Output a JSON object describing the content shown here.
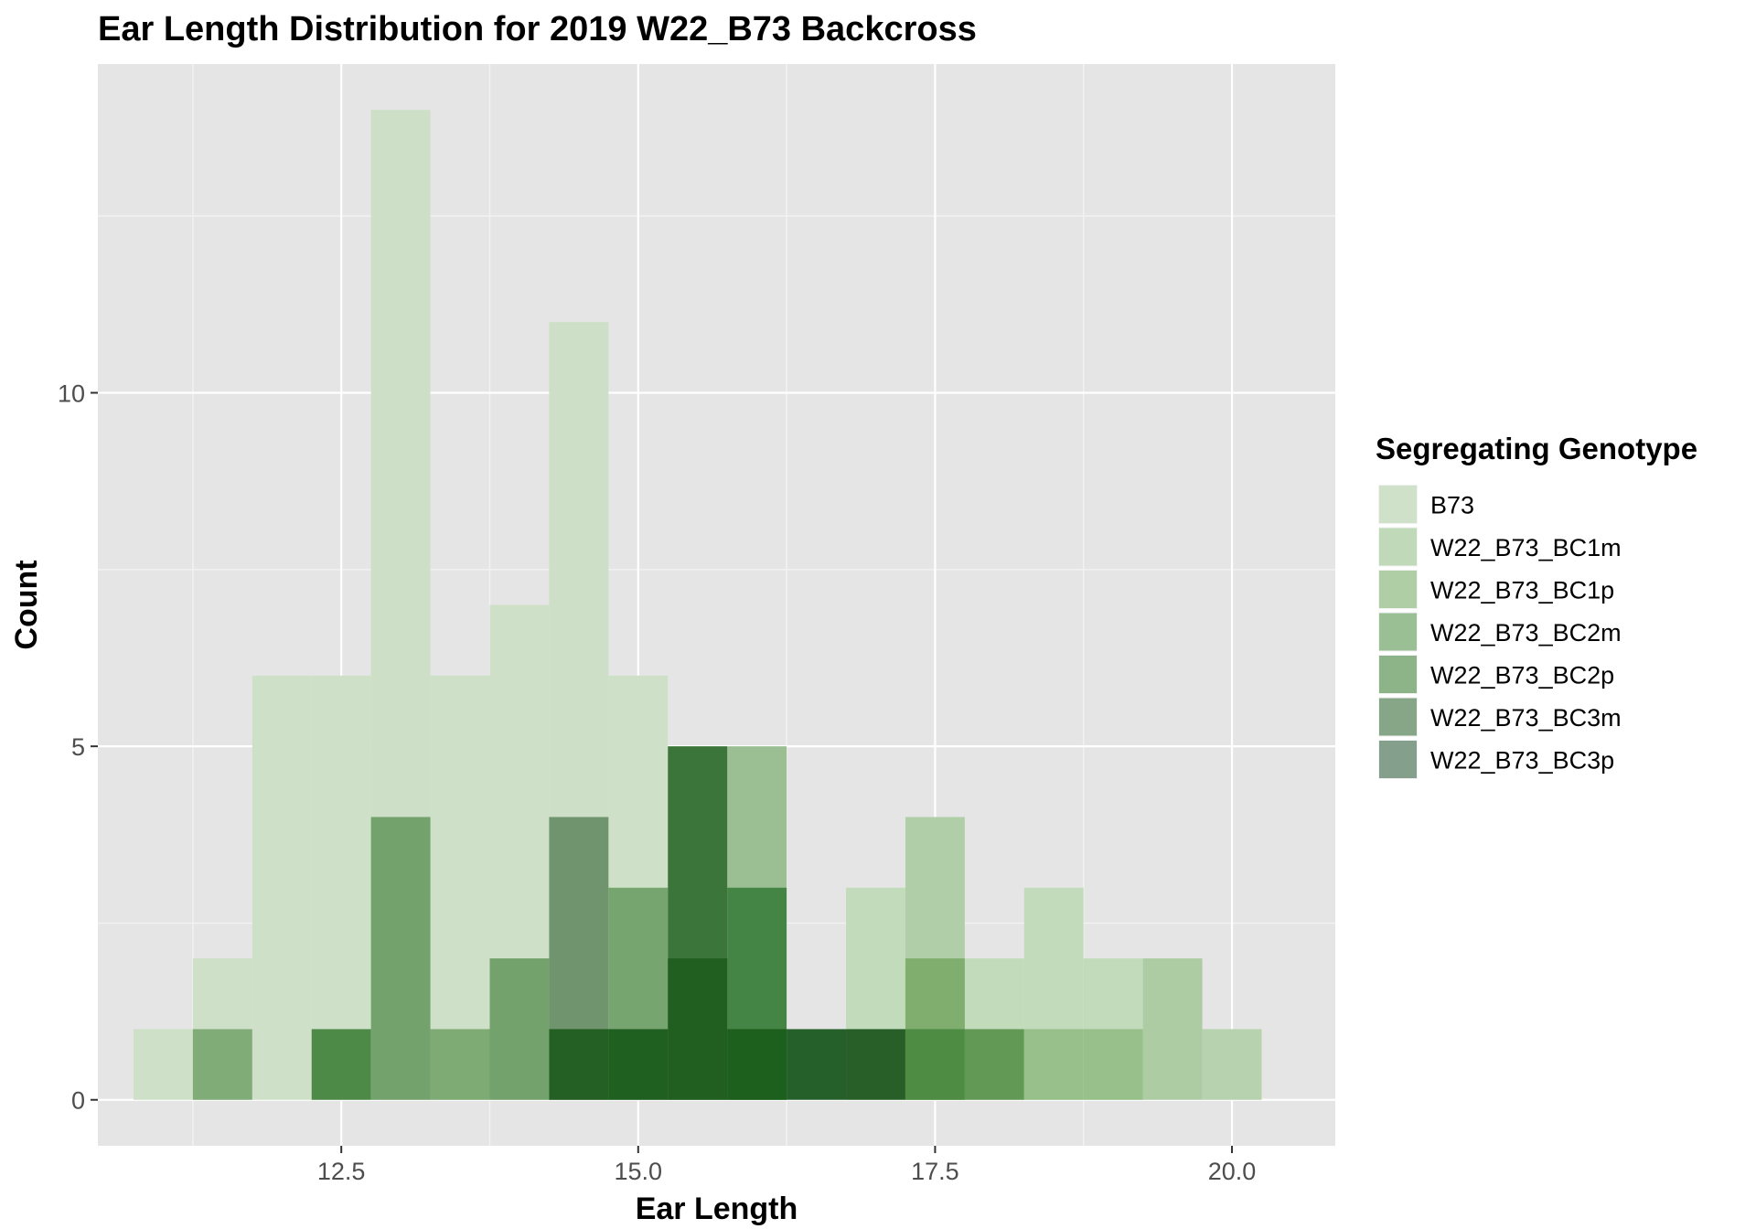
{
  "chart_data": {
    "type": "histogram",
    "title": "Ear Length Distribution for 2019 W22_B73 Backcross",
    "xlabel": "Ear Length",
    "ylabel": "Count",
    "xlim": [
      10.45,
      20.87
    ],
    "ylim": [
      -0.65,
      14.65
    ],
    "bin_width": 0.5,
    "x_ticks": [
      12.5,
      15.0,
      17.5,
      20.0
    ],
    "x_tick_labels": [
      "12.5",
      "15.0",
      "17.5",
      "20.0"
    ],
    "y_ticks": [
      0,
      5,
      10
    ],
    "y_tick_labels": [
      "0",
      "5",
      "10"
    ],
    "legend": {
      "title": "Segregating Genotype",
      "position": "right",
      "entries": [
        {
          "label": "B73",
          "color": "#cfe2c9"
        },
        {
          "label": "W22_B73_BC1m",
          "color": "#bfd9b9"
        },
        {
          "label": "W22_B73_BC1p",
          "color": "#afcea6"
        },
        {
          "label": "W22_B73_BC2m",
          "color": "#9bbf94"
        },
        {
          "label": "W22_B73_BC2p",
          "color": "#8db488"
        },
        {
          "label": "W22_B73_BC3m",
          "color": "#87a688"
        },
        {
          "label": "W22_B73_BC3p",
          "color": "#849f8c"
        }
      ]
    },
    "bars": [
      {
        "x": 11.0,
        "count": 1,
        "color": "#cfe0c8"
      },
      {
        "x": 11.5,
        "count": 2,
        "color": "#cfe0c8"
      },
      {
        "x": 12.0,
        "count": 6,
        "color": "#cfe0c8"
      },
      {
        "x": 12.5,
        "count": 6,
        "color": "#cfe0c8"
      },
      {
        "x": 13.0,
        "count": 14,
        "color": "#cddfc7"
      },
      {
        "x": 13.5,
        "count": 6,
        "color": "#cfe0c8"
      },
      {
        "x": 14.0,
        "count": 7,
        "color": "#cfe0c8"
      },
      {
        "x": 14.5,
        "count": 11,
        "color": "#cddfc7"
      },
      {
        "x": 15.0,
        "count": 6,
        "color": "#cfe0c8"
      },
      {
        "x": 16.0,
        "count": 5,
        "color": "#9bbe93"
      },
      {
        "x": 17.0,
        "count": 3,
        "color": "#c2dbbb"
      },
      {
        "x": 17.5,
        "count": 4,
        "color": "#b0cfa8"
      },
      {
        "x": 18.0,
        "count": 2,
        "color": "#c2dbbb"
      },
      {
        "x": 18.5,
        "count": 3,
        "color": "#c2dbbb"
      },
      {
        "x": 19.0,
        "count": 2,
        "color": "#c2dbbb"
      },
      {
        "x": 19.5,
        "count": 2,
        "color": "#adcca4"
      },
      {
        "x": 20.0,
        "count": 1,
        "color": "#b6d2ae"
      },
      {
        "x": 11.5,
        "count": 1,
        "color": "#80ac78"
      },
      {
        "x": 12.5,
        "count": 1,
        "color": "#4d8a47"
      },
      {
        "x": 13.0,
        "count": 4,
        "color": "#74a26c"
      },
      {
        "x": 13.5,
        "count": 1,
        "color": "#7dab73"
      },
      {
        "x": 14.0,
        "count": 2,
        "color": "#74a26c"
      },
      {
        "x": 14.5,
        "count": 4,
        "color": "#70956e"
      },
      {
        "x": 15.0,
        "count": 3,
        "color": "#77a56f"
      },
      {
        "x": 15.5,
        "count": 5,
        "color": "#3b7539"
      },
      {
        "x": 16.0,
        "count": 3,
        "color": "#448444"
      },
      {
        "x": 17.5,
        "count": 2,
        "color": "#7fae6f"
      },
      {
        "x": 14.5,
        "count": 1,
        "color": "#245f24"
      },
      {
        "x": 15.0,
        "count": 1,
        "color": "#1f5f20"
      },
      {
        "x": 15.5,
        "count": 2,
        "color": "#215f21"
      },
      {
        "x": 16.0,
        "count": 1,
        "color": "#1d5f1d"
      },
      {
        "x": 16.5,
        "count": 1,
        "color": "#25602a"
      },
      {
        "x": 17.0,
        "count": 1,
        "color": "#285f28"
      },
      {
        "x": 17.5,
        "count": 1,
        "color": "#4e8c44"
      },
      {
        "x": 18.0,
        "count": 1,
        "color": "#629955"
      },
      {
        "x": 18.5,
        "count": 1,
        "color": "#97c08a"
      },
      {
        "x": 19.0,
        "count": 1,
        "color": "#97c08a"
      }
    ]
  }
}
